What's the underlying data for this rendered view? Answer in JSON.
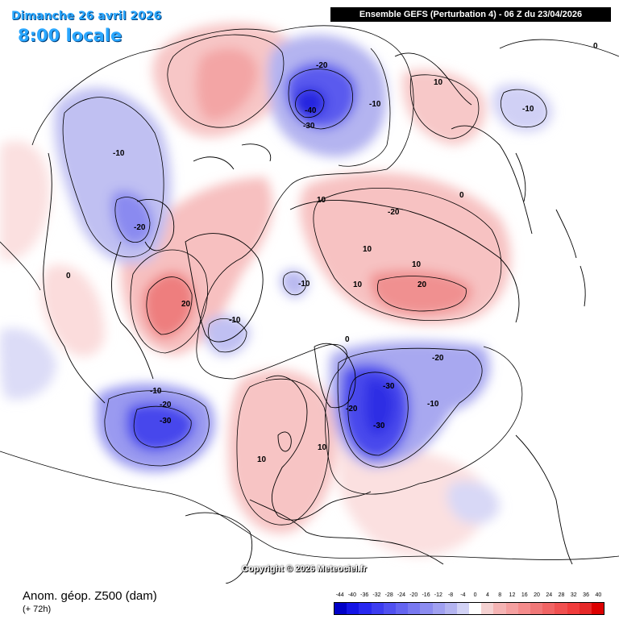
{
  "header": {
    "date_text": "Dimanche 26 avril 2026",
    "time_text": "8:00 locale",
    "model_text": "Ensemble GEFS  (Perturbation 4)  -  06 Z du 23/04/2026"
  },
  "footer": {
    "variable_text": "Anom. géop. Z500 (dam)",
    "lead_text": "(+ 72h)",
    "copyright_text": "Copyright © 2026 Meteociel.fr"
  },
  "legend": {
    "ticks": [
      "-44",
      "-40",
      "-36",
      "-32",
      "-28",
      "-24",
      "-20",
      "-16",
      "-12",
      "-8",
      "-4",
      "0",
      "4",
      "8",
      "12",
      "16",
      "20",
      "24",
      "28",
      "32",
      "36",
      "40"
    ],
    "colors": [
      "#0000c8",
      "#1414e6",
      "#2828f0",
      "#3c3cf0",
      "#5050f0",
      "#6464f0",
      "#7878f0",
      "#8c8cf0",
      "#a0a0f0",
      "#b4b4f0",
      "#d2d2f5",
      "#ffffff",
      "#f5d2d2",
      "#f5b4b4",
      "#f5a0a0",
      "#f58c8c",
      "#f07878",
      "#f06464",
      "#f05050",
      "#f03c3c",
      "#e62828",
      "#dc0000"
    ]
  },
  "contour_labels": [
    {
      "text": "-20",
      "name": "label-north-pacific-low-20"
    },
    {
      "text": "-40",
      "name": "label-north-pacific-low-40"
    },
    {
      "text": "-30",
      "name": "label-north-pacific-low-30"
    },
    {
      "text": "-10",
      "name": "label-north-pacific-low-10"
    },
    {
      "text": "10",
      "name": "label-alaska-ridge-10"
    },
    {
      "text": "0",
      "name": "label-bering-0"
    },
    {
      "text": "-10",
      "name": "label-bering-low-10"
    },
    {
      "text": "-10",
      "name": "label-canada-trough-10"
    },
    {
      "text": "-20",
      "name": "label-canada-trough-20"
    },
    {
      "text": "0",
      "name": "label-canada-0"
    },
    {
      "text": "20",
      "name": "label-greenland-ridge-20"
    },
    {
      "text": "-10",
      "name": "label-atlantic-low-10"
    },
    {
      "text": "-10",
      "name": "label-pole-low-10"
    },
    {
      "text": "10",
      "name": "label-siberia-ridge-10a"
    },
    {
      "text": "-20",
      "name": "label-siberia-ridge-20a"
    },
    {
      "text": "10",
      "name": "label-siberia-ridge-10b"
    },
    {
      "text": "10",
      "name": "label-siberia-ridge-10c"
    },
    {
      "text": "10",
      "name": "label-siberia-ridge-10d"
    },
    {
      "text": "20",
      "name": "label-siberia-ridge-20b"
    },
    {
      "text": "0",
      "name": "label-siberia-0"
    },
    {
      "text": "0",
      "name": "label-europe-0"
    },
    {
      "text": "-10",
      "name": "label-west-atlantic-low-10"
    },
    {
      "text": "-20",
      "name": "label-west-atlantic-low-20"
    },
    {
      "text": "-30",
      "name": "label-west-atlantic-low-30"
    },
    {
      "text": "10",
      "name": "label-europe-ridge-10a"
    },
    {
      "text": "10",
      "name": "label-europe-ridge-10b"
    },
    {
      "text": "-20",
      "name": "label-russia-trough-20a"
    },
    {
      "text": "-30",
      "name": "label-russia-trough-30a"
    },
    {
      "text": "-20",
      "name": "label-russia-trough-20b"
    },
    {
      "text": "-30",
      "name": "label-russia-trough-30b"
    },
    {
      "text": "-10",
      "name": "label-russia-trough-10"
    }
  ]
}
